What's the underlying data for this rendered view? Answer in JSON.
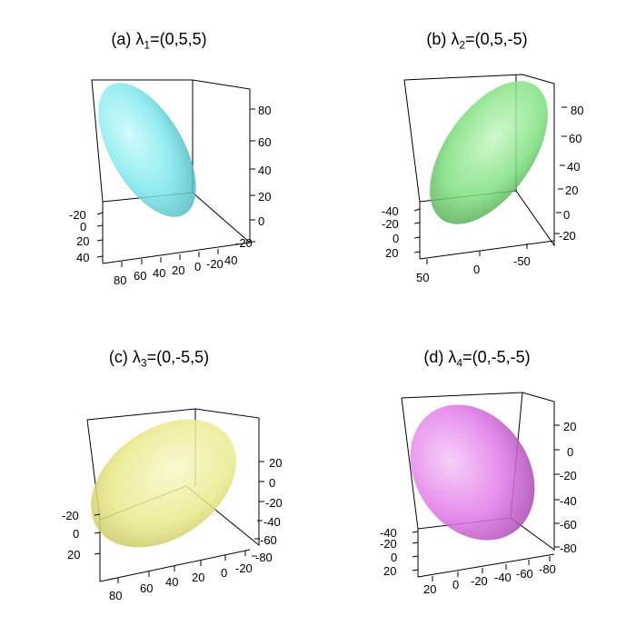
{
  "chart_data": [
    {
      "type": "3d-surface",
      "title": {
        "prefix": "(a) ",
        "symbol": "λ",
        "sub": "1",
        "suffix": "=(0,5,5)"
      },
      "color": "#7fe8ec",
      "x_ticks": [
        "-20",
        "0",
        "20",
        "40"
      ],
      "y_ticks": [
        "80",
        "60",
        "40",
        "20",
        "0",
        "-20"
      ],
      "y_ticks_extra": "40",
      "z_ticks": [
        "80",
        "60",
        "40",
        "20",
        "0",
        "-20"
      ]
    },
    {
      "type": "3d-surface",
      "title": {
        "prefix": "(b) ",
        "symbol": "λ",
        "sub": "2",
        "suffix": "=(0,5,-5)"
      },
      "color": "#7ee07e",
      "x_ticks": [
        "-40",
        "-20",
        "0",
        "20"
      ],
      "y_ticks": [
        "50",
        "0",
        "-50"
      ],
      "z_ticks": [
        "80",
        "60",
        "40",
        "20",
        "0",
        "-20"
      ]
    },
    {
      "type": "3d-surface",
      "title": {
        "prefix": "(c) ",
        "symbol": "λ",
        "sub": "3",
        "suffix": "=(0,-5,5)"
      },
      "color": "#eaea8c",
      "x_ticks": [
        "-20",
        "0",
        "20"
      ],
      "y_ticks": [
        "80",
        "60",
        "40",
        "20",
        "0",
        "-20"
      ],
      "z_ticks": [
        "20",
        "0",
        "-20",
        "-40",
        "-60",
        "-80"
      ]
    },
    {
      "type": "3d-surface",
      "title": {
        "prefix": "(d) ",
        "symbol": "λ",
        "sub": "4",
        "suffix": "=(0,-5,-5)"
      },
      "color": "#e27de8",
      "x_ticks": [
        "-40",
        "-20",
        "0",
        "20"
      ],
      "y_ticks": [
        "20",
        "0",
        "-20",
        "-40",
        "-60",
        "-80"
      ],
      "z_ticks": [
        "20",
        "0",
        "-20",
        "-40",
        "-60",
        "-80"
      ]
    }
  ]
}
